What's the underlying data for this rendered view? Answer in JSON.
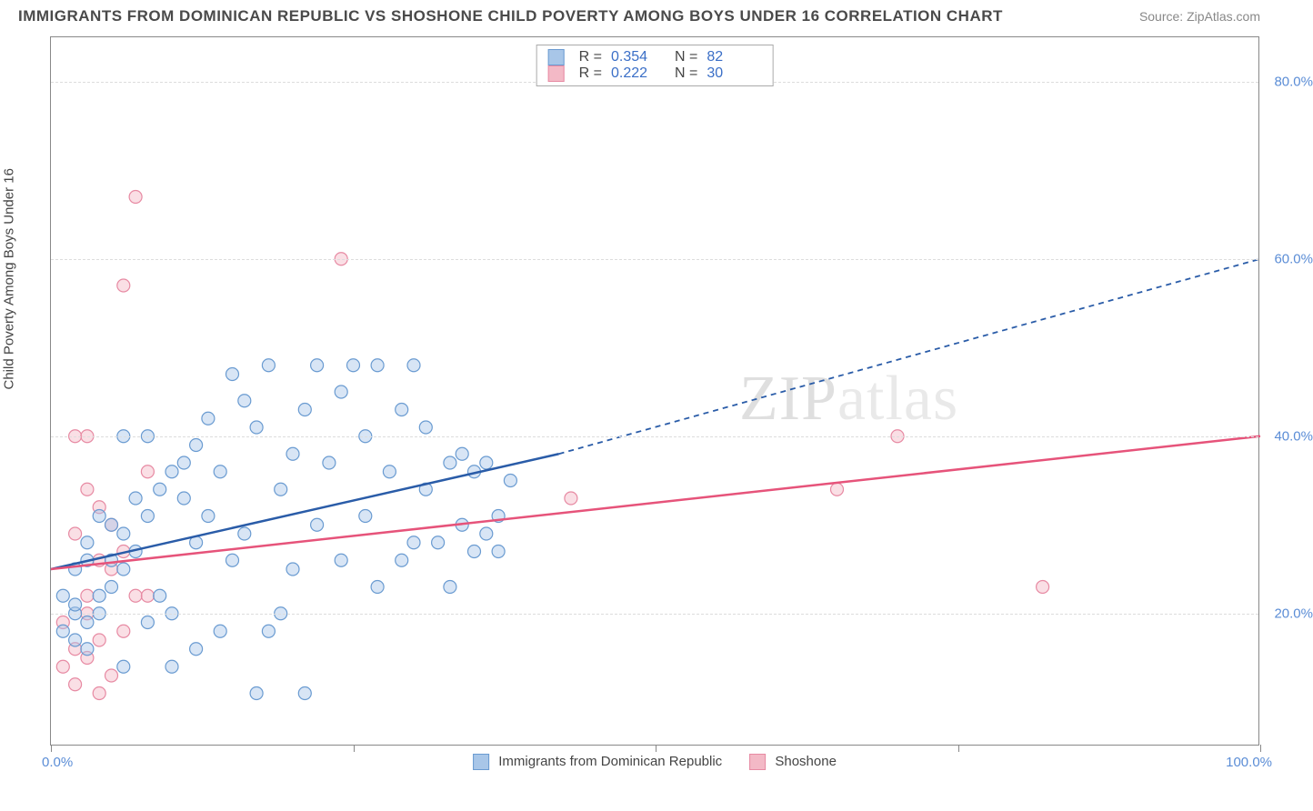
{
  "title": "IMMIGRANTS FROM DOMINICAN REPUBLIC VS SHOSHONE CHILD POVERTY AMONG BOYS UNDER 16 CORRELATION CHART",
  "source": "Source: ZipAtlas.com",
  "y_axis_label": "Child Poverty Among Boys Under 16",
  "watermark": "ZIPatlas",
  "chart": {
    "type": "scatter",
    "xlim": [
      0,
      100
    ],
    "ylim": [
      5,
      85
    ],
    "x_min_label": "0.0%",
    "x_max_label": "100.0%",
    "y_ticks": [
      {
        "v": 20,
        "label": "20.0%"
      },
      {
        "v": 40,
        "label": "40.0%"
      },
      {
        "v": 60,
        "label": "60.0%"
      },
      {
        "v": 80,
        "label": "80.0%"
      }
    ],
    "x_ticks": [
      0,
      25,
      50,
      75,
      100
    ],
    "grid_color": "#dddddd",
    "background": "#ffffff"
  },
  "series": [
    {
      "id": "dominican",
      "name": "Immigrants from Dominican Republic",
      "fill": "#a8c6e8",
      "stroke": "#6a9bd1",
      "line_color": "#2a5ca8",
      "R": "0.354",
      "N": "82",
      "trend_solid": {
        "x1": 0,
        "y1": 25,
        "x2": 42,
        "y2": 38
      },
      "trend_dash": {
        "x1": 42,
        "y1": 38,
        "x2": 100,
        "y2": 60
      },
      "points": [
        [
          2,
          20
        ],
        [
          2,
          21
        ],
        [
          3,
          19
        ],
        [
          1,
          22
        ],
        [
          2,
          25
        ],
        [
          3,
          26
        ],
        [
          4,
          20
        ],
        [
          4,
          22
        ],
        [
          5,
          23
        ],
        [
          3,
          28
        ],
        [
          5,
          26
        ],
        [
          6,
          25
        ],
        [
          6,
          29
        ],
        [
          4,
          31
        ],
        [
          7,
          27
        ],
        [
          8,
          19
        ],
        [
          7,
          33
        ],
        [
          8,
          31
        ],
        [
          9,
          34
        ],
        [
          10,
          36
        ],
        [
          9,
          22
        ],
        [
          5,
          30
        ],
        [
          11,
          33
        ],
        [
          11,
          37
        ],
        [
          12,
          39
        ],
        [
          12,
          28
        ],
        [
          13,
          31
        ],
        [
          13,
          42
        ],
        [
          14,
          36
        ],
        [
          14,
          18
        ],
        [
          15,
          26
        ],
        [
          15,
          47
        ],
        [
          16,
          29
        ],
        [
          16,
          44
        ],
        [
          17,
          41
        ],
        [
          18,
          48
        ],
        [
          18,
          18
        ],
        [
          19,
          34
        ],
        [
          20,
          38
        ],
        [
          20,
          25
        ],
        [
          21,
          43
        ],
        [
          22,
          48
        ],
        [
          22,
          30
        ],
        [
          23,
          37
        ],
        [
          24,
          45
        ],
        [
          24,
          26
        ],
        [
          25,
          48
        ],
        [
          26,
          40
        ],
        [
          26,
          31
        ],
        [
          27,
          48
        ],
        [
          28,
          36
        ],
        [
          29,
          43
        ],
        [
          29,
          26
        ],
        [
          30,
          48
        ],
        [
          31,
          34
        ],
        [
          31,
          41
        ],
        [
          32,
          28
        ],
        [
          33,
          37
        ],
        [
          33,
          23
        ],
        [
          34,
          30
        ],
        [
          35,
          27
        ],
        [
          35,
          36
        ],
        [
          36,
          29
        ],
        [
          37,
          27
        ],
        [
          38,
          35
        ],
        [
          17,
          11
        ],
        [
          10,
          20
        ],
        [
          6,
          40
        ],
        [
          8,
          40
        ],
        [
          19,
          20
        ],
        [
          27,
          23
        ],
        [
          30,
          28
        ],
        [
          34,
          38
        ],
        [
          36,
          37
        ],
        [
          37,
          31
        ],
        [
          21,
          11
        ],
        [
          10,
          14
        ],
        [
          12,
          16
        ],
        [
          6,
          14
        ],
        [
          3,
          16
        ],
        [
          1,
          18
        ],
        [
          2,
          17
        ]
      ]
    },
    {
      "id": "shoshone",
      "name": "Shoshone",
      "fill": "#f3b9c6",
      "stroke": "#e78aa3",
      "line_color": "#e6537a",
      "R": "0.222",
      "N": "30",
      "trend_solid": {
        "x1": 0,
        "y1": 25,
        "x2": 100,
        "y2": 40
      },
      "trend_dash": null,
      "points": [
        [
          1,
          19
        ],
        [
          2,
          16
        ],
        [
          1,
          14
        ],
        [
          2,
          12
        ],
        [
          3,
          15
        ],
        [
          4,
          11
        ],
        [
          5,
          13
        ],
        [
          3,
          22
        ],
        [
          4,
          26
        ],
        [
          2,
          29
        ],
        [
          5,
          30
        ],
        [
          3,
          34
        ],
        [
          2,
          40
        ],
        [
          3,
          40
        ],
        [
          6,
          57
        ],
        [
          8,
          36
        ],
        [
          7,
          67
        ],
        [
          24,
          60
        ],
        [
          7,
          22
        ],
        [
          43,
          33
        ],
        [
          65,
          34
        ],
        [
          70,
          40
        ],
        [
          82,
          23
        ],
        [
          4,
          17
        ],
        [
          6,
          18
        ],
        [
          3,
          20
        ],
        [
          8,
          22
        ],
        [
          5,
          25
        ],
        [
          4,
          32
        ],
        [
          6,
          27
        ]
      ]
    }
  ],
  "marker_radius": 7
}
